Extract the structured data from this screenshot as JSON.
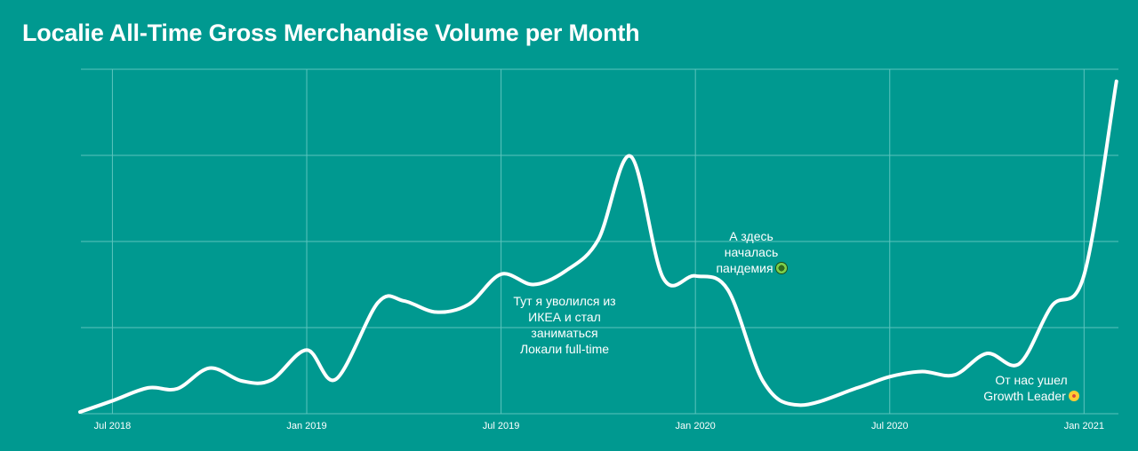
{
  "title": "Localie All-Time Gross Merchandise Volume per Month",
  "chart_data": {
    "type": "line",
    "title": "Localie All-Time Gross Merchandise Volume per Month",
    "xlabel": "",
    "ylabel": "",
    "x_tick_labels": [
      "Jul 2018",
      "Jan 2019",
      "Jul 2019",
      "Jan 2020",
      "Jul 2020",
      "Jan 2021"
    ],
    "x_ticks_month_index": [
      1,
      7,
      13,
      19,
      25,
      31
    ],
    "grid": true,
    "y_ticks_labeled": false,
    "ylim": [
      0,
      4
    ],
    "series": [
      {
        "name": "",
        "color": "#ffffff",
        "points": [
          {
            "month_index": 0.0,
            "value": 0.02
          },
          {
            "month_index": 1.0,
            "value": 0.15
          },
          {
            "month_index": 2.1,
            "value": 0.3
          },
          {
            "month_index": 3.0,
            "value": 0.29
          },
          {
            "month_index": 4.0,
            "value": 0.53
          },
          {
            "month_index": 5.0,
            "value": 0.38
          },
          {
            "month_index": 5.9,
            "value": 0.39
          },
          {
            "month_index": 7.0,
            "value": 0.74
          },
          {
            "month_index": 7.9,
            "value": 0.4
          },
          {
            "month_index": 9.2,
            "value": 1.29
          },
          {
            "month_index": 10.0,
            "value": 1.31
          },
          {
            "month_index": 11.0,
            "value": 1.18
          },
          {
            "month_index": 12.0,
            "value": 1.27
          },
          {
            "month_index": 13.0,
            "value": 1.62
          },
          {
            "month_index": 14.0,
            "value": 1.5
          },
          {
            "month_index": 15.0,
            "value": 1.66
          },
          {
            "month_index": 16.0,
            "value": 2.02
          },
          {
            "month_index": 17.0,
            "value": 2.99
          },
          {
            "month_index": 18.0,
            "value": 1.58
          },
          {
            "month_index": 19.0,
            "value": 1.6
          },
          {
            "month_index": 20.0,
            "value": 1.44
          },
          {
            "month_index": 21.1,
            "value": 0.37
          },
          {
            "month_index": 22.2,
            "value": 0.1
          },
          {
            "month_index": 24.0,
            "value": 0.3
          },
          {
            "month_index": 25.0,
            "value": 0.43
          },
          {
            "month_index": 26.0,
            "value": 0.49
          },
          {
            "month_index": 27.0,
            "value": 0.45
          },
          {
            "month_index": 28.0,
            "value": 0.7
          },
          {
            "month_index": 29.0,
            "value": 0.58
          },
          {
            "month_index": 30.0,
            "value": 1.25
          },
          {
            "month_index": 31.0,
            "value": 1.61
          },
          {
            "month_index": 32.0,
            "value": 3.86
          }
        ]
      }
    ],
    "annotations": [
      {
        "text": [
          "Тут я уволился из",
          "ИКЕА и стал",
          "заниматься",
          "Локали full-time"
        ],
        "month_index": 13.2
      },
      {
        "text": [
          "А здесь",
          "началась",
          "пандемия"
        ],
        "month_index": 20.8,
        "emoji": "virus"
      },
      {
        "text": [
          "От нас ушел",
          "Growth Leader"
        ],
        "month_index": 29.2,
        "emoji": "smiley"
      }
    ]
  },
  "colors": {
    "background": "#009990",
    "line": "#ffffff",
    "grid": "#5cc4bd"
  }
}
